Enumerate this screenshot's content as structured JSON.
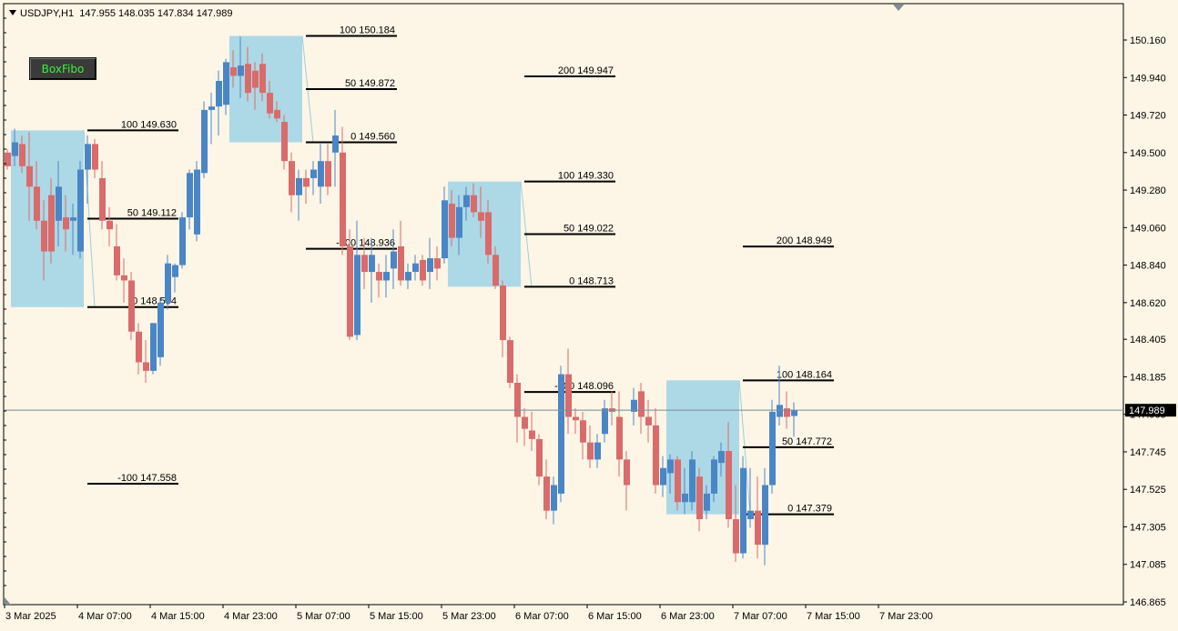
{
  "header": {
    "symbol": "USDJPY,H1",
    "ohlc": "147.955 148.035 147.834 147.989"
  },
  "button": {
    "label": "BoxFibo"
  },
  "colors": {
    "background": "#fdf5e6",
    "bull": "#4a86c5",
    "bear": "#d96b6b",
    "box": "#add8e6",
    "current_line": "#7a8a9a",
    "price_tag_bg": "#000000"
  },
  "chart_data": {
    "type": "candlestick",
    "symbol": "USDJPY",
    "timeframe": "H1",
    "ylim": [
      146.865,
      150.16
    ],
    "y_ticks": [
      "150.160",
      "149.940",
      "149.720",
      "149.500",
      "149.280",
      "149.060",
      "148.840",
      "148.620",
      "148.405",
      "148.185",
      "147.965",
      "147.745",
      "147.525",
      "147.305",
      "147.085",
      "146.865"
    ],
    "x_ticks": [
      "3 Mar 2025",
      "4 Mar 07:00",
      "4 Mar 15:00",
      "4 Mar 23:00",
      "5 Mar 07:00",
      "5 Mar 15:00",
      "5 Mar 23:00",
      "6 Mar 07:00",
      "6 Mar 15:00",
      "6 Mar 23:00",
      "7 Mar 07:00",
      "7 Mar 15:00",
      "7 Mar 23:00"
    ],
    "current_price": "147.989",
    "candles": [
      [
        149.5,
        149.52,
        149.4,
        149.42
      ],
      [
        149.48,
        149.64,
        149.42,
        149.56
      ],
      [
        149.55,
        149.6,
        149.38,
        149.42
      ],
      [
        149.42,
        149.62,
        149.1,
        149.3
      ],
      [
        149.3,
        149.45,
        149.05,
        149.1
      ],
      [
        149.1,
        149.22,
        148.75,
        148.92
      ],
      [
        149.25,
        149.35,
        148.85,
        148.92
      ],
      [
        149.1,
        149.45,
        148.95,
        149.3
      ],
      [
        149.12,
        149.25,
        148.92,
        149.05
      ],
      [
        149.1,
        149.2,
        148.9,
        149.12
      ],
      [
        148.92,
        149.45,
        148.88,
        149.4
      ],
      [
        149.4,
        149.6,
        149.2,
        149.55
      ],
      [
        149.55,
        149.58,
        149.35,
        149.4
      ],
      [
        149.35,
        149.45,
        149.05,
        149.1
      ],
      [
        149.1,
        149.18,
        148.95,
        149.05
      ],
      [
        148.95,
        149.08,
        148.75,
        148.78
      ],
      [
        148.78,
        148.88,
        148.62,
        148.75
      ],
      [
        148.75,
        148.8,
        148.4,
        148.45
      ],
      [
        148.45,
        148.5,
        148.2,
        148.27
      ],
      [
        148.27,
        148.4,
        148.15,
        148.22
      ],
      [
        148.22,
        148.5,
        148.2,
        148.5
      ],
      [
        148.3,
        148.65,
        148.25,
        148.62
      ],
      [
        148.62,
        148.9,
        148.58,
        148.85
      ],
      [
        148.77,
        148.85,
        148.68,
        148.84
      ],
      [
        148.84,
        149.15,
        148.82,
        149.12
      ],
      [
        149.12,
        149.4,
        149.05,
        149.38
      ],
      [
        149.02,
        149.45,
        148.98,
        149.4
      ],
      [
        149.38,
        149.8,
        149.35,
        149.75
      ],
      [
        149.75,
        149.85,
        149.55,
        149.77
      ],
      [
        149.77,
        149.98,
        149.6,
        149.92
      ],
      [
        149.78,
        150.05,
        149.72,
        150.03
      ],
      [
        150.0,
        150.1,
        149.88,
        149.95
      ],
      [
        149.95,
        150.18,
        149.82,
        150.01
      ],
      [
        150.02,
        150.12,
        149.8,
        149.85
      ],
      [
        149.98,
        150.03,
        149.75,
        149.88
      ],
      [
        150.02,
        150.08,
        149.8,
        149.85
      ],
      [
        149.85,
        149.92,
        149.7,
        149.73
      ],
      [
        149.75,
        149.8,
        149.68,
        149.7
      ],
      [
        149.68,
        149.72,
        149.4,
        149.45
      ],
      [
        149.45,
        149.5,
        149.15,
        149.25
      ],
      [
        149.25,
        149.4,
        149.1,
        149.35
      ],
      [
        149.35,
        149.4,
        149.2,
        149.3
      ],
      [
        149.35,
        149.45,
        149.25,
        149.4
      ],
      [
        149.3,
        149.55,
        149.2,
        149.45
      ],
      [
        149.45,
        149.55,
        149.25,
        149.3
      ],
      [
        149.5,
        149.75,
        149.3,
        149.6
      ],
      [
        149.5,
        149.65,
        148.9,
        148.95
      ],
      [
        148.95,
        149.05,
        148.4,
        148.42
      ],
      [
        148.43,
        149.1,
        148.4,
        148.9
      ],
      [
        148.9,
        149.0,
        148.7,
        148.8
      ],
      [
        148.8,
        149.0,
        148.62,
        148.9
      ],
      [
        148.8,
        148.85,
        148.65,
        148.75
      ],
      [
        148.75,
        148.9,
        148.65,
        148.8
      ],
      [
        148.82,
        149.05,
        148.7,
        148.92
      ],
      [
        148.95,
        149.1,
        148.72,
        148.75
      ],
      [
        148.75,
        148.85,
        148.7,
        148.8
      ],
      [
        148.8,
        148.9,
        148.75,
        148.85
      ],
      [
        148.87,
        148.9,
        148.72,
        148.75
      ],
      [
        148.8,
        149.0,
        148.7,
        148.88
      ],
      [
        148.88,
        148.95,
        148.75,
        148.82
      ],
      [
        148.88,
        149.3,
        148.85,
        149.22
      ],
      [
        149.2,
        149.28,
        148.95,
        149.0
      ],
      [
        149.0,
        149.25,
        148.9,
        149.18
      ],
      [
        149.18,
        149.3,
        149.1,
        149.25
      ],
      [
        149.25,
        149.32,
        149.12,
        149.15
      ],
      [
        149.15,
        149.3,
        149.0,
        149.1
      ],
      [
        149.15,
        149.22,
        148.85,
        148.9
      ],
      [
        148.9,
        148.95,
        148.7,
        148.72
      ],
      [
        148.72,
        148.75,
        148.3,
        148.4
      ],
      [
        148.4,
        148.42,
        148.12,
        148.15
      ],
      [
        148.15,
        148.2,
        147.8,
        147.95
      ],
      [
        147.95,
        148.0,
        147.78,
        147.88
      ],
      [
        147.87,
        147.98,
        147.75,
        147.82
      ],
      [
        147.82,
        147.85,
        147.55,
        147.6
      ],
      [
        147.6,
        147.7,
        147.35,
        147.4
      ],
      [
        147.4,
        147.6,
        147.32,
        147.55
      ],
      [
        147.5,
        148.25,
        147.45,
        148.2
      ],
      [
        148.2,
        148.35,
        147.85,
        147.95
      ],
      [
        147.95,
        148.0,
        147.85,
        147.93
      ],
      [
        147.93,
        147.98,
        147.7,
        147.8
      ],
      [
        147.8,
        147.9,
        147.65,
        147.7
      ],
      [
        147.7,
        147.85,
        147.65,
        147.8
      ],
      [
        147.85,
        148.05,
        147.8,
        148.0
      ],
      [
        148.0,
        148.1,
        147.9,
        147.98
      ],
      [
        147.95,
        148.1,
        147.6,
        147.7
      ],
      [
        147.7,
        147.75,
        147.4,
        147.55
      ],
      [
        147.98,
        148.12,
        147.9,
        148.05
      ],
      [
        148.1,
        148.15,
        147.85,
        147.95
      ],
      [
        147.95,
        148.05,
        147.8,
        147.9
      ],
      [
        147.9,
        148.0,
        147.5,
        147.55
      ],
      [
        147.55,
        147.72,
        147.48,
        147.65
      ],
      [
        147.62,
        147.73,
        147.5,
        147.7
      ],
      [
        147.7,
        147.72,
        147.4,
        147.45
      ],
      [
        147.45,
        147.65,
        147.38,
        147.5
      ],
      [
        147.45,
        147.75,
        147.4,
        147.7
      ],
      [
        147.6,
        147.65,
        147.28,
        147.35
      ],
      [
        147.4,
        147.55,
        147.35,
        147.5
      ],
      [
        147.5,
        147.72,
        147.45,
        147.7
      ],
      [
        147.68,
        147.8,
        147.6,
        147.75
      ],
      [
        147.75,
        147.92,
        147.3,
        147.35
      ],
      [
        147.35,
        147.55,
        147.1,
        147.15
      ],
      [
        147.15,
        147.72,
        147.12,
        147.65
      ],
      [
        147.35,
        147.65,
        147.3,
        147.4
      ],
      [
        147.4,
        147.6,
        147.12,
        147.2
      ],
      [
        147.2,
        147.65,
        147.08,
        147.55
      ],
      [
        147.55,
        148.05,
        147.5,
        147.98
      ],
      [
        147.95,
        148.25,
        147.9,
        148.02
      ],
      [
        148.0,
        148.1,
        147.88,
        147.95
      ],
      [
        147.955,
        148.035,
        147.834,
        147.989
      ]
    ],
    "boxes": [
      {
        "label_high": "100  149.630",
        "label_mid": "50  149.112",
        "label_low": "0  148.594",
        "label_ext": "-100  147.558"
      },
      {
        "label_high": "100  150.184",
        "label_mid": "50  149.872",
        "label_low": "0  149.560",
        "label_ext": "-100  148.936"
      },
      {
        "label_up2": "200  149.947",
        "label_high": "100  149.330",
        "label_mid": "50  149.022",
        "label_low": "0  148.713",
        "label_ext": "-100  148.096"
      },
      {
        "label_up2": "200  148.949",
        "label_high": "100  148.164",
        "label_mid": "50  147.772",
        "label_low": "0  147.379"
      }
    ],
    "fibo_levels": [
      {
        "box": 0,
        "value": 149.63,
        "label": "100  149.630"
      },
      {
        "box": 0,
        "value": 149.112,
        "label": "50  149.112"
      },
      {
        "box": 0,
        "value": 148.594,
        "label": "0  148.594"
      },
      {
        "box": 0,
        "value": 147.558,
        "label": "-100  147.558"
      },
      {
        "box": 1,
        "value": 150.184,
        "label": "100  150.184"
      },
      {
        "box": 1,
        "value": 149.872,
        "label": "50  149.872"
      },
      {
        "box": 1,
        "value": 149.56,
        "label": "0  149.560"
      },
      {
        "box": 1,
        "value": 148.936,
        "label": "-100  148.936"
      },
      {
        "box": 2,
        "value": 149.947,
        "label": "200  149.947"
      },
      {
        "box": 2,
        "value": 149.33,
        "label": "100  149.330"
      },
      {
        "box": 2,
        "value": 149.022,
        "label": "50  149.022"
      },
      {
        "box": 2,
        "value": 148.713,
        "label": "0  148.713"
      },
      {
        "box": 2,
        "value": 148.096,
        "label": "-100  148.096"
      },
      {
        "box": 3,
        "value": 148.949,
        "label": "200  148.949"
      },
      {
        "box": 3,
        "value": 148.164,
        "label": "100  148.164"
      },
      {
        "box": 3,
        "value": 147.772,
        "label": "50  147.772"
      },
      {
        "box": 3,
        "value": 147.379,
        "label": "0  147.379"
      }
    ]
  }
}
